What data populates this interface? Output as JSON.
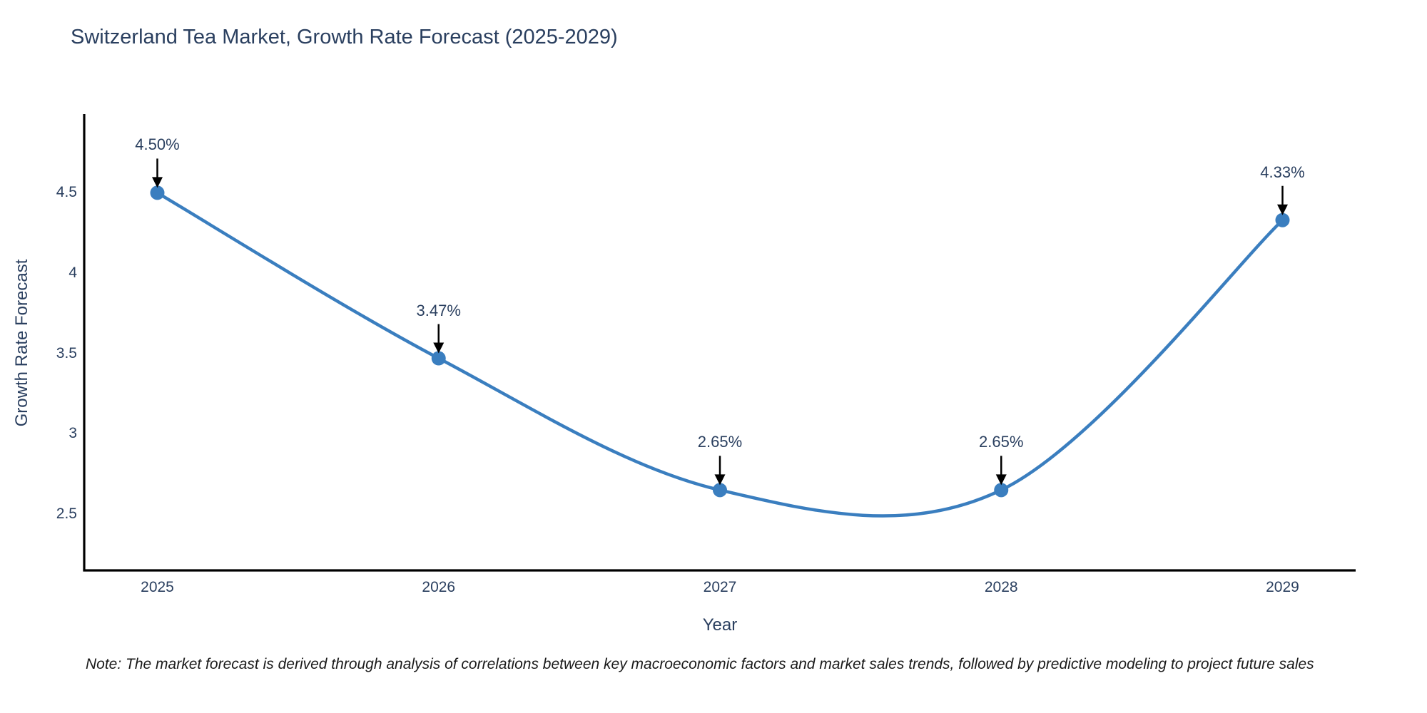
{
  "chart_data": {
    "type": "line",
    "title": "Switzerland Tea Market, Growth Rate Forecast (2025-2029)",
    "xlabel": "Year",
    "ylabel": "Growth Rate Forecast",
    "categories": [
      2025,
      2026,
      2027,
      2028,
      2029
    ],
    "values": [
      4.5,
      3.47,
      2.65,
      2.65,
      4.33
    ],
    "point_labels": [
      "4.50%",
      "3.47%",
      "2.65%",
      "2.65%",
      "4.33%"
    ],
    "yticks": [
      2.5,
      3,
      3.5,
      4,
      4.5
    ],
    "xticks": [
      "2025",
      "2026",
      "2027",
      "2028",
      "2029"
    ],
    "xlim": [
      2024.74,
      2029.26
    ],
    "ylim": [
      2.15,
      4.99
    ],
    "curve": "spline",
    "grid": false,
    "legend_position": "none",
    "line_color": "#3a7ebf",
    "marker_color": "#3a7ebf",
    "axis_color": "#000000",
    "arrow_color": "#000000",
    "text_color": "#2a3f5f"
  },
  "note": "Note: The market forecast is derived through analysis of correlations between key macroeconomic factors and market sales trends, followed by predictive modeling to project future sales"
}
